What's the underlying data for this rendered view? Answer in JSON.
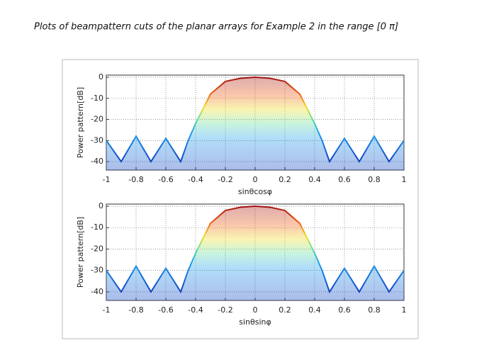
{
  "heading": "Plots of beampattern cuts of the planar arrays for Example 2 in the range [0 π]",
  "chart_data": [
    {
      "type": "line",
      "x_label": "sinθcosφ",
      "y_label": "Power pattern[dB]",
      "x": [
        -1,
        -0.9,
        -0.8,
        -0.7,
        -0.6,
        -0.5,
        -0.45,
        -0.4,
        -0.3,
        -0.2,
        -0.1,
        0,
        0.1,
        0.2,
        0.3,
        0.4,
        0.45,
        0.5,
        0.6,
        0.7,
        0.8,
        0.9,
        1
      ],
      "values": [
        -30,
        -40,
        -28,
        -40,
        -29,
        -40,
        -30,
        -22,
        -8,
        -2,
        -0.5,
        0,
        -0.5,
        -2,
        -8,
        -22,
        -30,
        -40,
        -29,
        -40,
        -28,
        -40,
        -30
      ],
      "xlim": [
        -1,
        1
      ],
      "ylim": [
        -44,
        1
      ],
      "xticks": [
        -1,
        -0.8,
        -0.6,
        -0.4,
        -0.2,
        0,
        0.2,
        0.4,
        0.6,
        0.8,
        1
      ],
      "yticks": [
        0,
        -10,
        -20,
        -30,
        -40
      ],
      "grid": true
    },
    {
      "type": "line",
      "x_label": "sinθsinφ",
      "y_label": "Power pattern[dB]",
      "x": [
        -1,
        -0.9,
        -0.8,
        -0.7,
        -0.6,
        -0.5,
        -0.45,
        -0.4,
        -0.3,
        -0.2,
        -0.1,
        0,
        0.1,
        0.2,
        0.3,
        0.4,
        0.45,
        0.5,
        0.6,
        0.7,
        0.8,
        0.9,
        1
      ],
      "values": [
        -30,
        -40,
        -28,
        -40,
        -29,
        -40,
        -30,
        -22,
        -8,
        -2,
        -0.5,
        0,
        -0.5,
        -2,
        -8,
        -22,
        -30,
        -40,
        -29,
        -40,
        -28,
        -40,
        -30
      ],
      "xlim": [
        -1,
        1
      ],
      "ylim": [
        -44,
        1
      ],
      "xticks": [
        -1,
        -0.8,
        -0.6,
        -0.4,
        -0.2,
        0,
        0.2,
        0.4,
        0.6,
        0.8,
        1
      ],
      "yticks": [
        0,
        -10,
        -20,
        -30,
        -40
      ],
      "grid": true
    }
  ]
}
